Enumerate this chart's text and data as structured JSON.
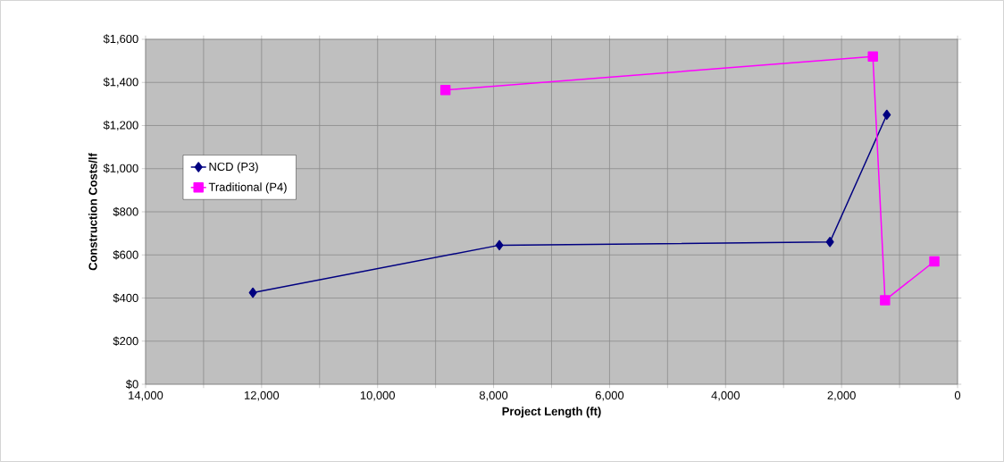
{
  "chart_data": {
    "type": "line",
    "xlabel": "Project Length (ft)",
    "ylabel": "Construction Costs/lf",
    "xlim": [
      14000,
      0
    ],
    "ylim": [
      0,
      1600
    ],
    "xticks": [
      {
        "value": 14000,
        "label": "14,000"
      },
      {
        "value": 13000,
        "label": null
      },
      {
        "value": 12000,
        "label": "12,000"
      },
      {
        "value": 11000,
        "label": null
      },
      {
        "value": 10000,
        "label": "10,000"
      },
      {
        "value": 9000,
        "label": null
      },
      {
        "value": 8000,
        "label": "8,000"
      },
      {
        "value": 7000,
        "label": null
      },
      {
        "value": 6000,
        "label": "6,000"
      },
      {
        "value": 5000,
        "label": null
      },
      {
        "value": 4000,
        "label": "4,000"
      },
      {
        "value": 3000,
        "label": null
      },
      {
        "value": 2000,
        "label": "2,000"
      },
      {
        "value": 1000,
        "label": null
      },
      {
        "value": 0,
        "label": "0"
      }
    ],
    "yticks": [
      {
        "value": 0,
        "label": "$0"
      },
      {
        "value": 200,
        "label": "$200"
      },
      {
        "value": 400,
        "label": "$400"
      },
      {
        "value": 600,
        "label": "$600"
      },
      {
        "value": 800,
        "label": "$800"
      },
      {
        "value": 1000,
        "label": "$1,000"
      },
      {
        "value": 1200,
        "label": "$1,200"
      },
      {
        "value": 1400,
        "label": "$1,400"
      },
      {
        "value": 1600,
        "label": "$1,600"
      }
    ],
    "grid": true,
    "legend": "left",
    "series": [
      {
        "name": "NCD (P3)",
        "color": "#000080",
        "marker": "diamond",
        "x": [
          12150,
          7900,
          2200,
          1220
        ],
        "values": [
          425,
          645,
          660,
          1250
        ]
      },
      {
        "name": "Traditional (P4)",
        "color": "#ff00ff",
        "marker": "square",
        "x": [
          8830,
          1460,
          1250,
          400
        ],
        "values": [
          1365,
          1520,
          390,
          570
        ]
      }
    ]
  }
}
